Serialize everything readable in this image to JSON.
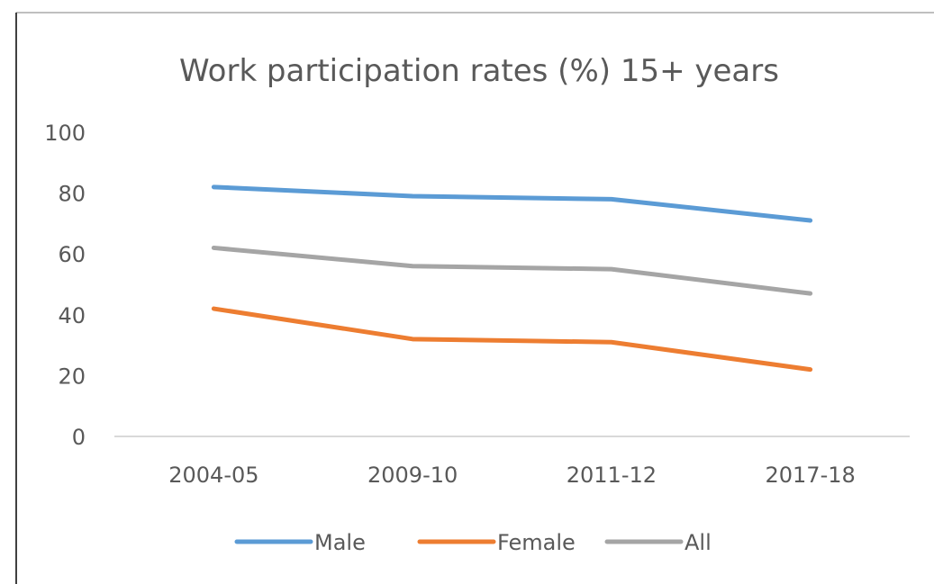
{
  "chart_data": {
    "type": "line",
    "title": "Work participation rates (%) 15+ years",
    "xlabel": "",
    "ylabel": "",
    "categories": [
      "2004-05",
      "2009-10",
      "2011-12",
      "2017-18"
    ],
    "ylim": [
      0,
      100
    ],
    "yticks": [
      0,
      20,
      40,
      60,
      80,
      100
    ],
    "grid": false,
    "legend_position": "bottom",
    "series": [
      {
        "name": "Male",
        "color": "#5B9BD5",
        "values": [
          82,
          79,
          78,
          71
        ]
      },
      {
        "name": "Female",
        "color": "#ED7D31",
        "values": [
          42,
          32,
          31,
          22
        ]
      },
      {
        "name": "All",
        "color": "#A5A5A5",
        "values": [
          62,
          56,
          55,
          47
        ]
      }
    ]
  }
}
